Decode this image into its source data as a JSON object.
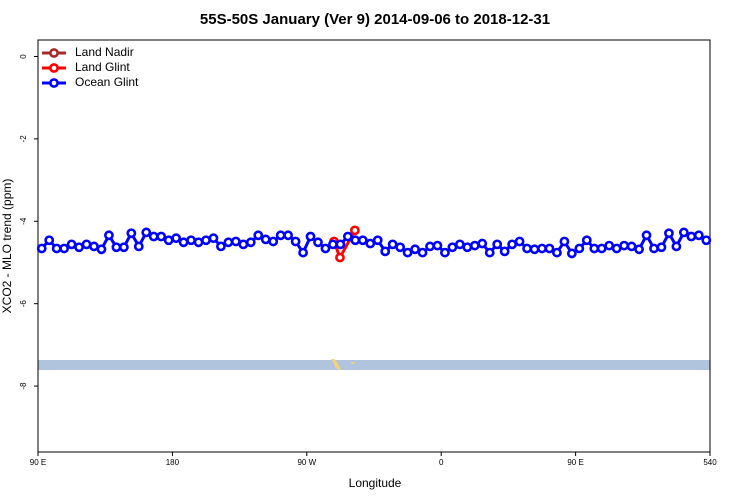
{
  "chart_data": {
    "type": "line",
    "title": "55S-50S January (Ver 9)   2014-09-06 to 2018-12-31",
    "x_label": "Longitude",
    "y_label": "XCO2 - MLO trend (ppm)",
    "xlim": [
      90,
      540
    ],
    "ylim": [
      -9.6,
      0.4
    ],
    "xticks": [
      {
        "value": 90,
        "label": "90 E"
      },
      180,
      {
        "value": 270,
        "label": "90 W"
      },
      {
        "value": 360,
        "label": "0"
      },
      {
        "value": 450,
        "label": "90 E"
      },
      540
    ],
    "yticks": [
      0,
      -2,
      -4,
      -6,
      -8
    ],
    "legend": "upper left",
    "series": [
      {
        "name": "Land Nadir",
        "color": "#a52a2a",
        "x": [],
        "values": []
      },
      {
        "name": "Land Glint",
        "color": "#ff0000",
        "x": [
          288.2,
          292.2,
          302.2
        ],
        "values": [
          -4.49,
          -4.88,
          -4.22
        ]
      },
      {
        "name": "Ocean Glint",
        "color": "#0000ff",
        "x": [
          92.5,
          97.5,
          102.5,
          107.5,
          112.5,
          117.5,
          122.5,
          127.5,
          132.5,
          137.5,
          142.5,
          147.5,
          152.5,
          157.5,
          162.5,
          167.5,
          172.5,
          177.5,
          182.5,
          187.5,
          192.5,
          197.5,
          202.5,
          207.5,
          212.5,
          217.5,
          222.5,
          227.5,
          232.5,
          237.5,
          242.5,
          247.5,
          252.5,
          257.5,
          262.5,
          267.5,
          272.5,
          277.5,
          282.5,
          287.5,
          292.5,
          297.5,
          302.5,
          307.5,
          312.5,
          317.5,
          322.5,
          327.5,
          332.5,
          337.5,
          342.5,
          347.5,
          352.5,
          357.5,
          362.5,
          367.5,
          372.5,
          377.5,
          382.5,
          387.5,
          392.5,
          397.5,
          402.5,
          407.5,
          412.5,
          417.5,
          422.5,
          427.5,
          432.5,
          437.5,
          442.5,
          447.5,
          452.5,
          457.5,
          462.5,
          467.5,
          472.5,
          477.5,
          482.5,
          487.5,
          492.5,
          497.5,
          502.5,
          507.5,
          512.5,
          517.5,
          522.5,
          527.5,
          532.5,
          537.5
        ],
        "values": [
          -4.66,
          -4.46,
          -4.66,
          -4.66,
          -4.56,
          -4.63,
          -4.56,
          -4.61,
          -4.68,
          -4.34,
          -4.63,
          -4.63,
          -4.29,
          -4.61,
          -4.27,
          -4.37,
          -4.37,
          -4.46,
          -4.41,
          -4.51,
          -4.46,
          -4.51,
          -4.46,
          -4.41,
          -4.61,
          -4.51,
          -4.49,
          -4.56,
          -4.51,
          -4.34,
          -4.44,
          -4.49,
          -4.34,
          -4.34,
          -4.49,
          -4.76,
          -4.37,
          -4.51,
          -4.66,
          -4.56,
          -4.56,
          -4.37,
          -4.46,
          -4.46,
          -4.54,
          -4.46,
          -4.73,
          -4.56,
          -4.63,
          -4.76,
          -4.68,
          -4.76,
          -4.61,
          -4.59,
          -4.76,
          -4.63,
          -4.56,
          -4.63,
          -4.59,
          -4.54,
          -4.76,
          -4.56,
          -4.73,
          -4.56,
          -4.49,
          -4.66,
          -4.68,
          -4.66,
          -4.66,
          -4.76,
          -4.49,
          -4.78,
          -4.66,
          -4.46,
          -4.66,
          -4.66,
          -4.59,
          -4.66,
          -4.59,
          -4.61,
          -4.68,
          -4.34,
          -4.66,
          -4.63,
          -4.29,
          -4.61,
          -4.27,
          -4.37,
          -4.34,
          -4.46
        ]
      }
    ]
  }
}
